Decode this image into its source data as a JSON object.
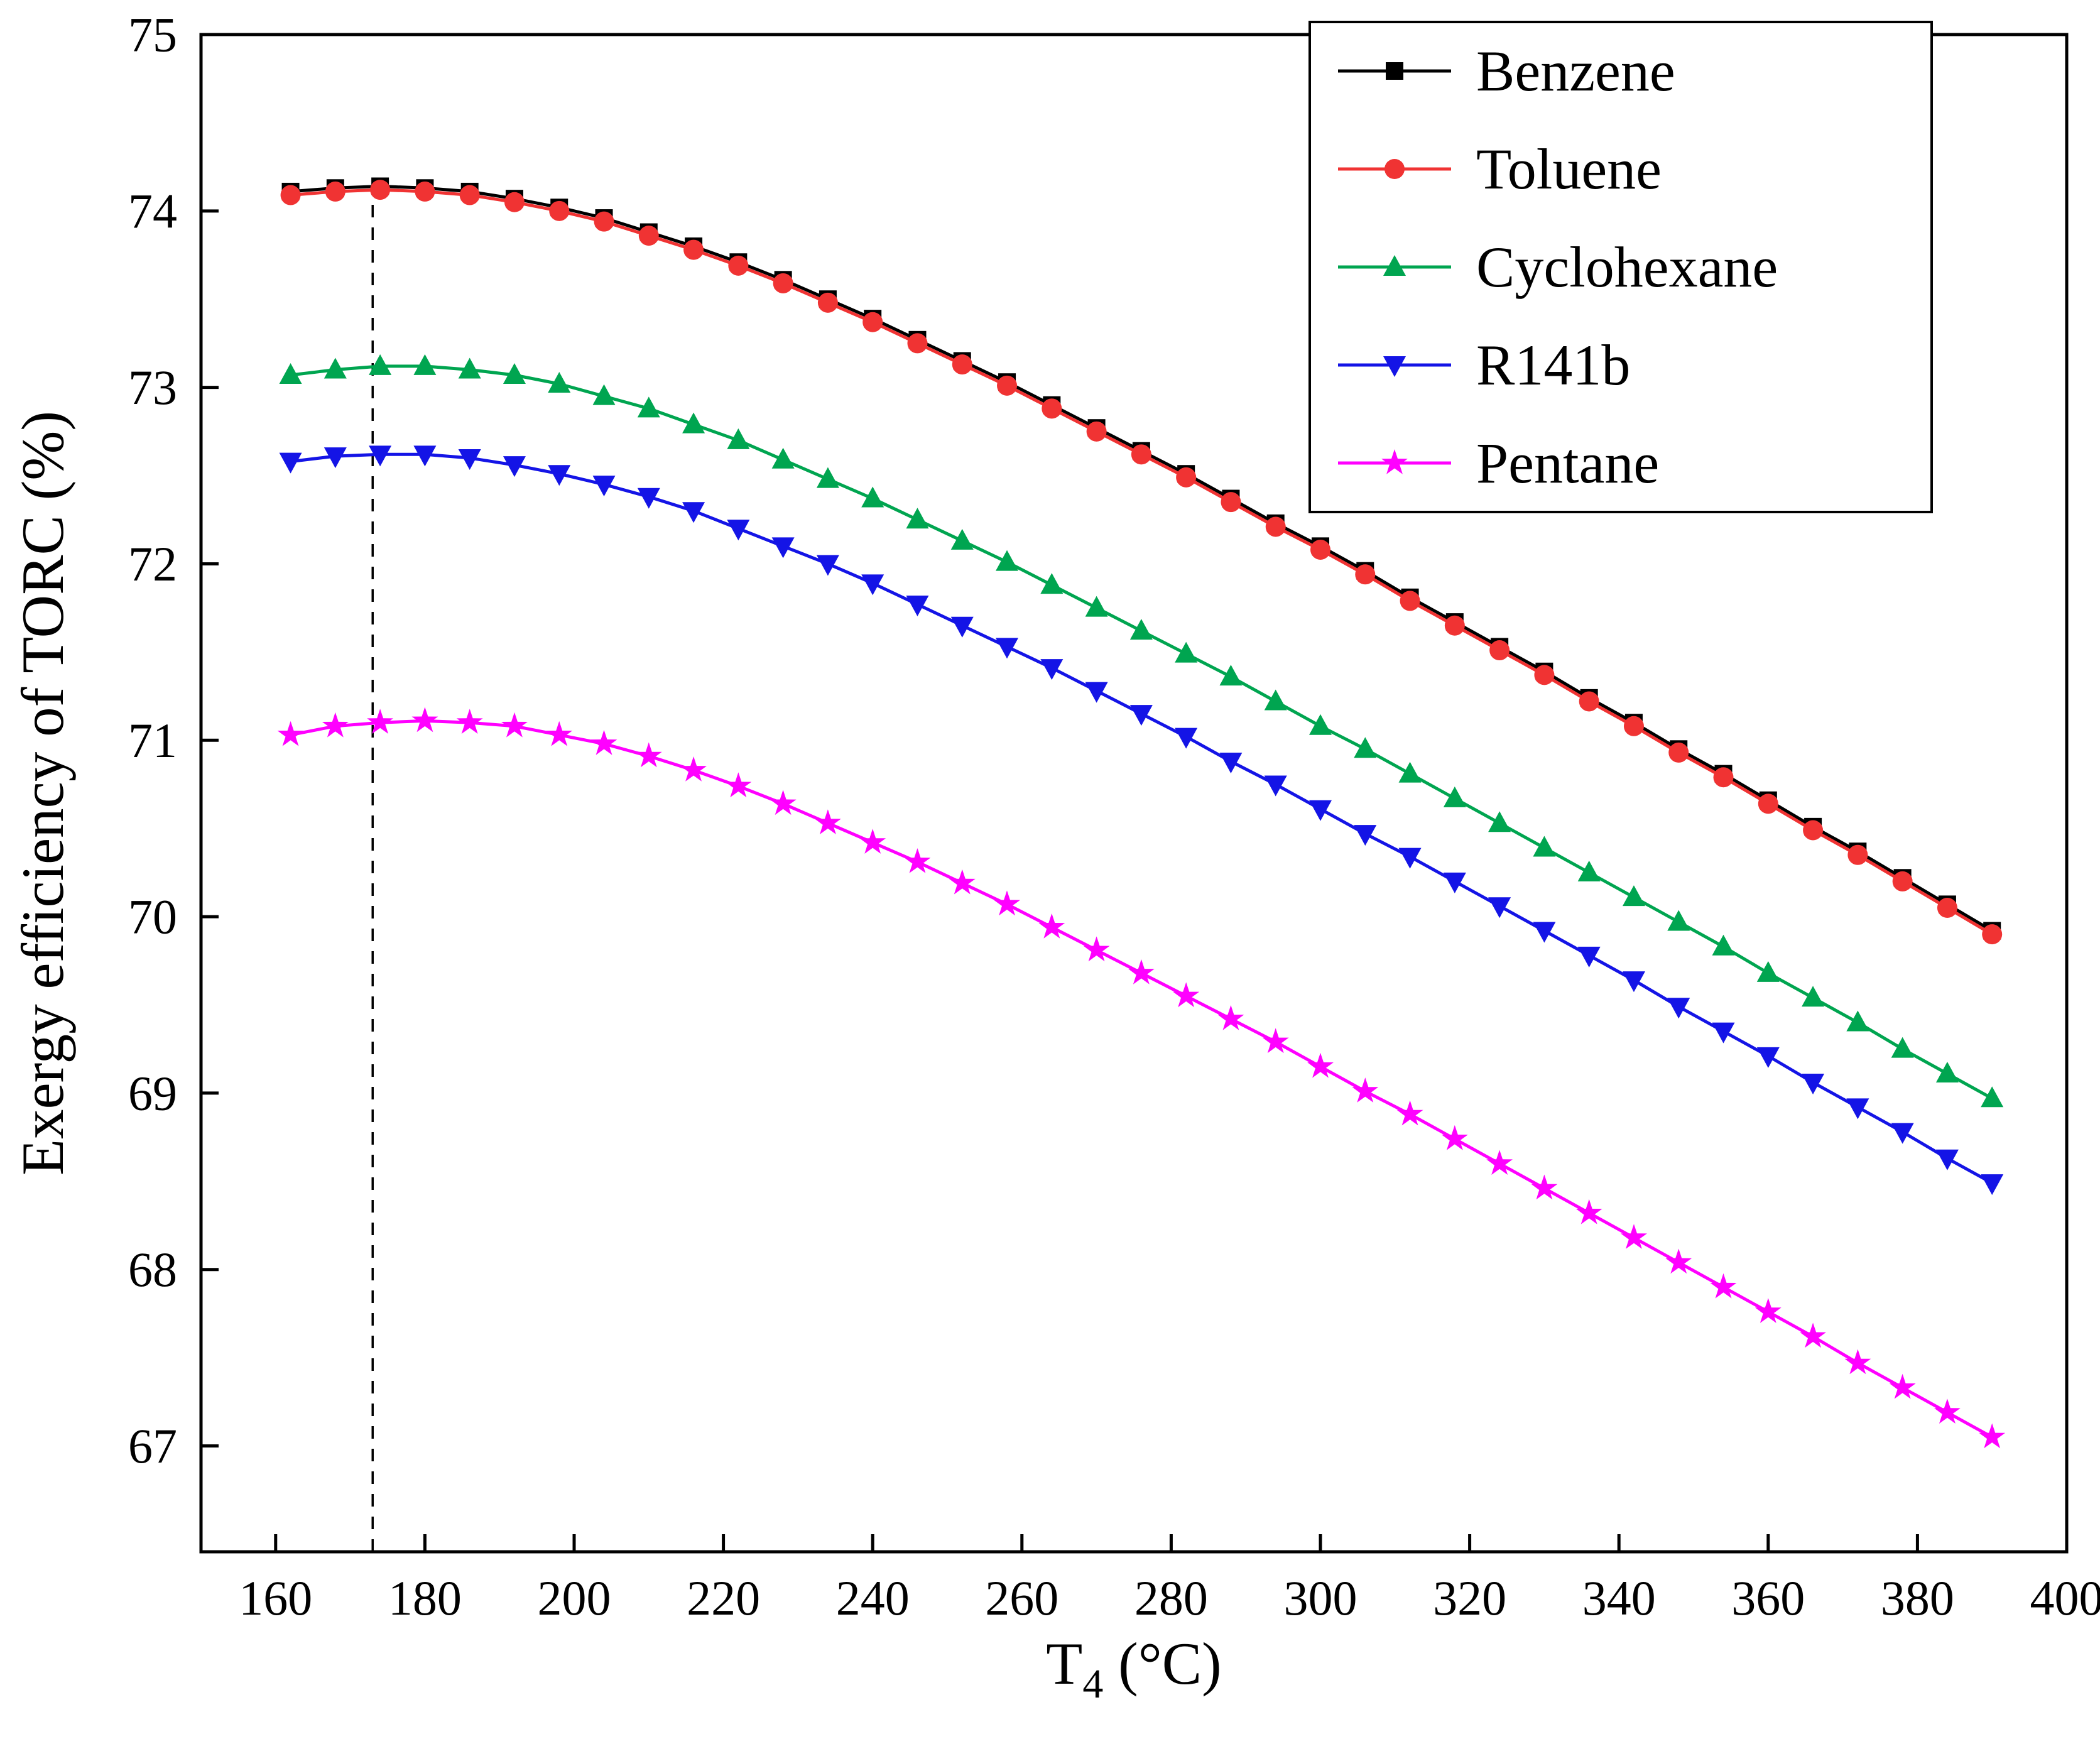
{
  "figure": {
    "background": "#ffffff",
    "frame_color": "#000000"
  },
  "chart_data": {
    "type": "line",
    "title": "",
    "xlabel": {
      "prefix": "T",
      "sub": "4",
      "suffix": " (°C)"
    },
    "ylabel": "Exergy efficiency of TORC (%)",
    "xlim": [
      150,
      400
    ],
    "ylim": [
      66.4,
      75
    ],
    "xticks": [
      160,
      180,
      200,
      220,
      240,
      260,
      280,
      300,
      320,
      340,
      360,
      380,
      400
    ],
    "yticks": [
      67,
      68,
      69,
      70,
      71,
      72,
      73,
      74,
      75
    ],
    "grid": false,
    "legend_position": "top-right",
    "reference_line": {
      "type": "vertical-dashed",
      "x": 173,
      "color": "#000000"
    },
    "x": [
      162,
      168,
      174,
      180,
      186,
      192,
      198,
      204,
      210,
      216,
      222,
      228,
      234,
      240,
      246,
      252,
      258,
      264,
      270,
      276,
      282,
      288,
      294,
      300,
      306,
      312,
      318,
      324,
      330,
      336,
      342,
      348,
      354,
      360,
      366,
      372,
      378,
      384,
      390
    ],
    "series": [
      {
        "name": "Benzene",
        "color": "#000000",
        "marker": "square",
        "values": [
          74.11,
          74.13,
          74.14,
          74.13,
          74.11,
          74.07,
          74.02,
          73.96,
          73.88,
          73.8,
          73.71,
          73.61,
          73.5,
          73.39,
          73.27,
          73.15,
          73.03,
          72.9,
          72.77,
          72.64,
          72.51,
          72.37,
          72.23,
          72.1,
          71.96,
          71.81,
          71.67,
          71.53,
          71.39,
          71.24,
          71.1,
          70.95,
          70.81,
          70.66,
          70.51,
          70.37,
          70.22,
          70.07,
          69.92
        ]
      },
      {
        "name": "Toluene",
        "color": "#f03333",
        "marker": "circle",
        "values": [
          74.09,
          74.11,
          74.12,
          74.11,
          74.09,
          74.05,
          74.0,
          73.94,
          73.86,
          73.78,
          73.69,
          73.59,
          73.48,
          73.37,
          73.25,
          73.13,
          73.01,
          72.88,
          72.75,
          72.62,
          72.49,
          72.35,
          72.21,
          72.08,
          71.94,
          71.79,
          71.65,
          71.51,
          71.37,
          71.22,
          71.08,
          70.93,
          70.79,
          70.64,
          70.49,
          70.35,
          70.2,
          70.05,
          69.9
        ]
      },
      {
        "name": "Cyclohexane",
        "color": "#00a550",
        "marker": "triangle-up",
        "values": [
          73.07,
          73.1,
          73.12,
          73.12,
          73.1,
          73.07,
          73.02,
          72.95,
          72.88,
          72.79,
          72.7,
          72.59,
          72.48,
          72.37,
          72.25,
          72.13,
          72.01,
          71.88,
          71.75,
          71.62,
          71.49,
          71.36,
          71.22,
          71.08,
          70.95,
          70.81,
          70.67,
          70.53,
          70.39,
          70.25,
          70.11,
          69.97,
          69.83,
          69.68,
          69.54,
          69.4,
          69.25,
          69.11,
          68.97
        ]
      },
      {
        "name": "R141b",
        "color": "#1414e6",
        "marker": "triangle-down",
        "values": [
          72.58,
          72.61,
          72.62,
          72.62,
          72.6,
          72.56,
          72.51,
          72.45,
          72.38,
          72.3,
          72.2,
          72.1,
          72.0,
          71.89,
          71.77,
          71.65,
          71.53,
          71.41,
          71.28,
          71.15,
          71.02,
          70.88,
          70.75,
          70.61,
          70.47,
          70.34,
          70.2,
          70.06,
          69.92,
          69.78,
          69.64,
          69.49,
          69.35,
          69.21,
          69.06,
          68.92,
          68.78,
          68.63,
          68.49
        ]
      },
      {
        "name": "Pentane",
        "color": "#ff00ff",
        "marker": "star",
        "values": [
          71.03,
          71.08,
          71.1,
          71.11,
          71.1,
          71.08,
          71.03,
          70.98,
          70.91,
          70.83,
          70.74,
          70.64,
          70.53,
          70.42,
          70.31,
          70.19,
          70.07,
          69.94,
          69.81,
          69.68,
          69.55,
          69.42,
          69.29,
          69.15,
          69.01,
          68.88,
          68.74,
          68.6,
          68.46,
          68.32,
          68.18,
          68.04,
          67.9,
          67.76,
          67.62,
          67.47,
          67.33,
          67.19,
          67.05
        ]
      }
    ]
  }
}
